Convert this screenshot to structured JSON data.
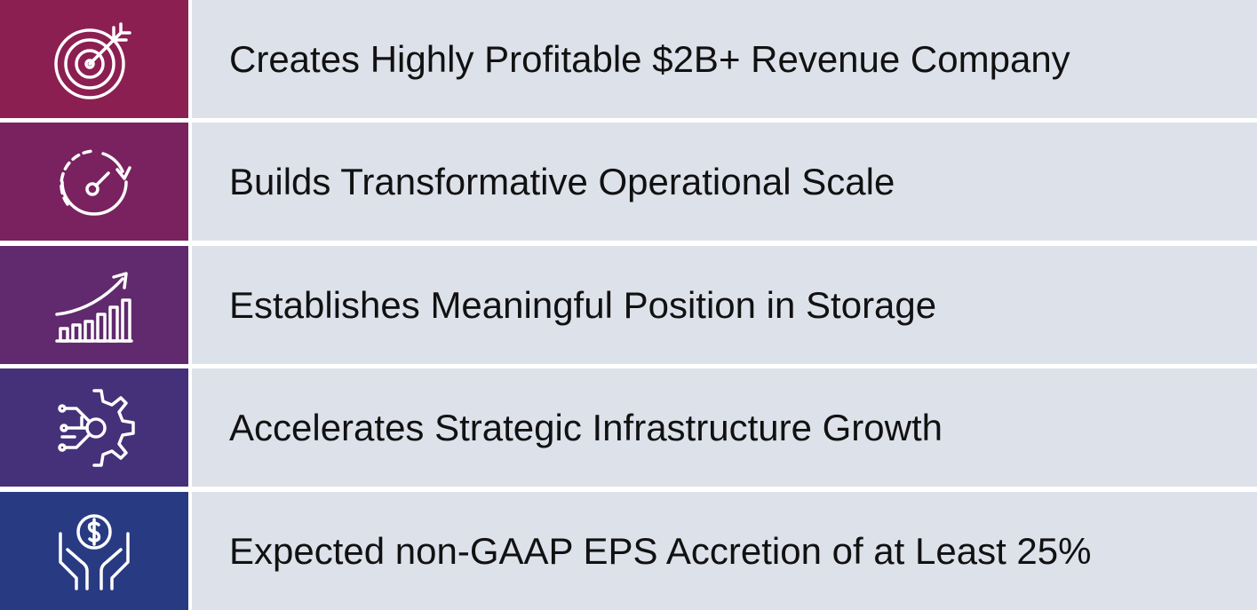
{
  "items": [
    {
      "label": "Creates Highly Profitable $2B+ Revenue Company"
    },
    {
      "label": "Builds Transformative Operational Scale"
    },
    {
      "label": "Establishes Meaningful Position in Storage"
    },
    {
      "label": "Accelerates Strategic Infrastructure Growth"
    },
    {
      "label": "Expected non-GAAP EPS Accretion of at Least 25%"
    }
  ]
}
